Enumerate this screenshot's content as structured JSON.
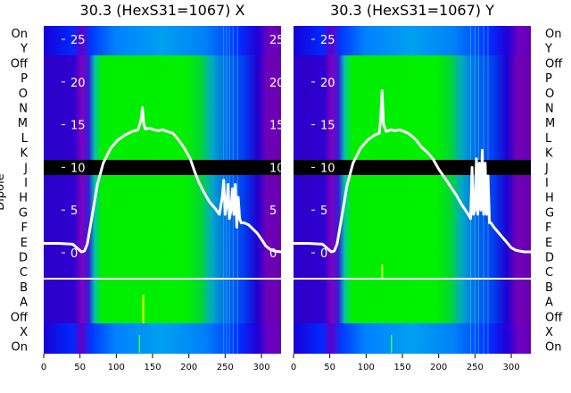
{
  "ylabel": "Dipole",
  "row_labels": [
    "On",
    "Y",
    "Off",
    "P",
    "O",
    "N",
    "M",
    "L",
    "K",
    "J",
    "I",
    "H",
    "G",
    "F",
    "E",
    "D",
    "C",
    "B",
    "A",
    "Off",
    "X",
    "On"
  ],
  "colors": {
    "deep_blue": "#2a00c8",
    "blue": "#0030ff",
    "cyan": "#00b0e0",
    "teal": "#00d8a0",
    "green": "#00ee00",
    "dark_green": "#00b050",
    "purple": "#7a00b0",
    "magenta": "#b000b8",
    "black": "#000000",
    "white": "#ffffff",
    "yellow": "#ffff00"
  },
  "chart_data": [
    {
      "type": "heatmap",
      "title": "30.3 (HexS31=1067) X",
      "x_ticks": [
        0,
        50,
        100,
        150,
        200,
        250,
        300
      ],
      "xlim": [
        0,
        327
      ],
      "y_ticks": [
        0,
        5,
        10,
        15,
        20,
        25
      ],
      "ylim": [
        -2,
        27
      ],
      "overlay_line": {
        "x": [
          0,
          20,
          40,
          52,
          56,
          60,
          66,
          74,
          82,
          92,
          102,
          112,
          122,
          130,
          134,
          136,
          138,
          140,
          146,
          152,
          158,
          164,
          170,
          178,
          186,
          194,
          202,
          208,
          214,
          220,
          228,
          236,
          242,
          246,
          248,
          250,
          252,
          254,
          256,
          258,
          260,
          262,
          264,
          266,
          268,
          270,
          272,
          276,
          282,
          288,
          294,
          300,
          306,
          312,
          318,
          327
        ],
        "y": [
          1.1,
          1.1,
          1.0,
          0.1,
          0.2,
          1.0,
          4.0,
          8.0,
          10.5,
          12.2,
          13.2,
          13.8,
          14.2,
          14.4,
          15.5,
          17.0,
          15.0,
          14.5,
          14.6,
          14.4,
          14.3,
          14.4,
          14.2,
          14.0,
          13.2,
          12.2,
          11.0,
          9.5,
          8.2,
          7.2,
          6.0,
          5.2,
          4.5,
          6.5,
          8.5,
          4.5,
          5.5,
          8.0,
          4.0,
          5.0,
          7.5,
          4.5,
          8.0,
          3.0,
          6.5,
          4.0,
          3.5,
          3.5,
          3.3,
          2.8,
          2.3,
          1.6,
          0.8,
          0.4,
          0.2,
          0.1
        ]
      }
    },
    {
      "type": "heatmap",
      "title": "30.3 (HexS31=1067) Y",
      "x_ticks": [
        0,
        50,
        100,
        150,
        200,
        250,
        300
      ],
      "xlim": [
        0,
        327
      ],
      "y_ticks": [
        0,
        5,
        10,
        15,
        20,
        25
      ],
      "ylim": [
        -2,
        27
      ],
      "overlay_line": {
        "x": [
          0,
          20,
          40,
          52,
          56,
          60,
          66,
          74,
          82,
          92,
          102,
          112,
          118,
          120,
          122,
          124,
          128,
          134,
          140,
          146,
          152,
          158,
          164,
          170,
          176,
          184,
          192,
          200,
          208,
          216,
          224,
          232,
          240,
          244,
          246,
          248,
          250,
          252,
          254,
          256,
          258,
          260,
          262,
          264,
          266,
          268,
          270,
          272,
          276,
          282,
          288,
          294,
          300,
          306,
          312,
          318,
          327
        ],
        "y": [
          1.1,
          1.1,
          1.0,
          0.1,
          0.2,
          1.0,
          4.0,
          8.0,
          10.5,
          12.2,
          13.2,
          13.8,
          14.0,
          15.5,
          19.0,
          15.0,
          14.2,
          14.4,
          14.3,
          14.4,
          14.2,
          14.0,
          13.6,
          13.1,
          12.4,
          11.8,
          11.0,
          9.8,
          8.8,
          7.8,
          6.8,
          5.6,
          4.6,
          4.0,
          10.0,
          4.5,
          5.0,
          11.0,
          4.5,
          10.5,
          5.0,
          12.0,
          4.5,
          10.5,
          4.5,
          9.0,
          3.5,
          3.5,
          3.0,
          2.4,
          1.8,
          1.2,
          0.6,
          0.3,
          0.2,
          0.1,
          0.1
        ]
      }
    }
  ]
}
